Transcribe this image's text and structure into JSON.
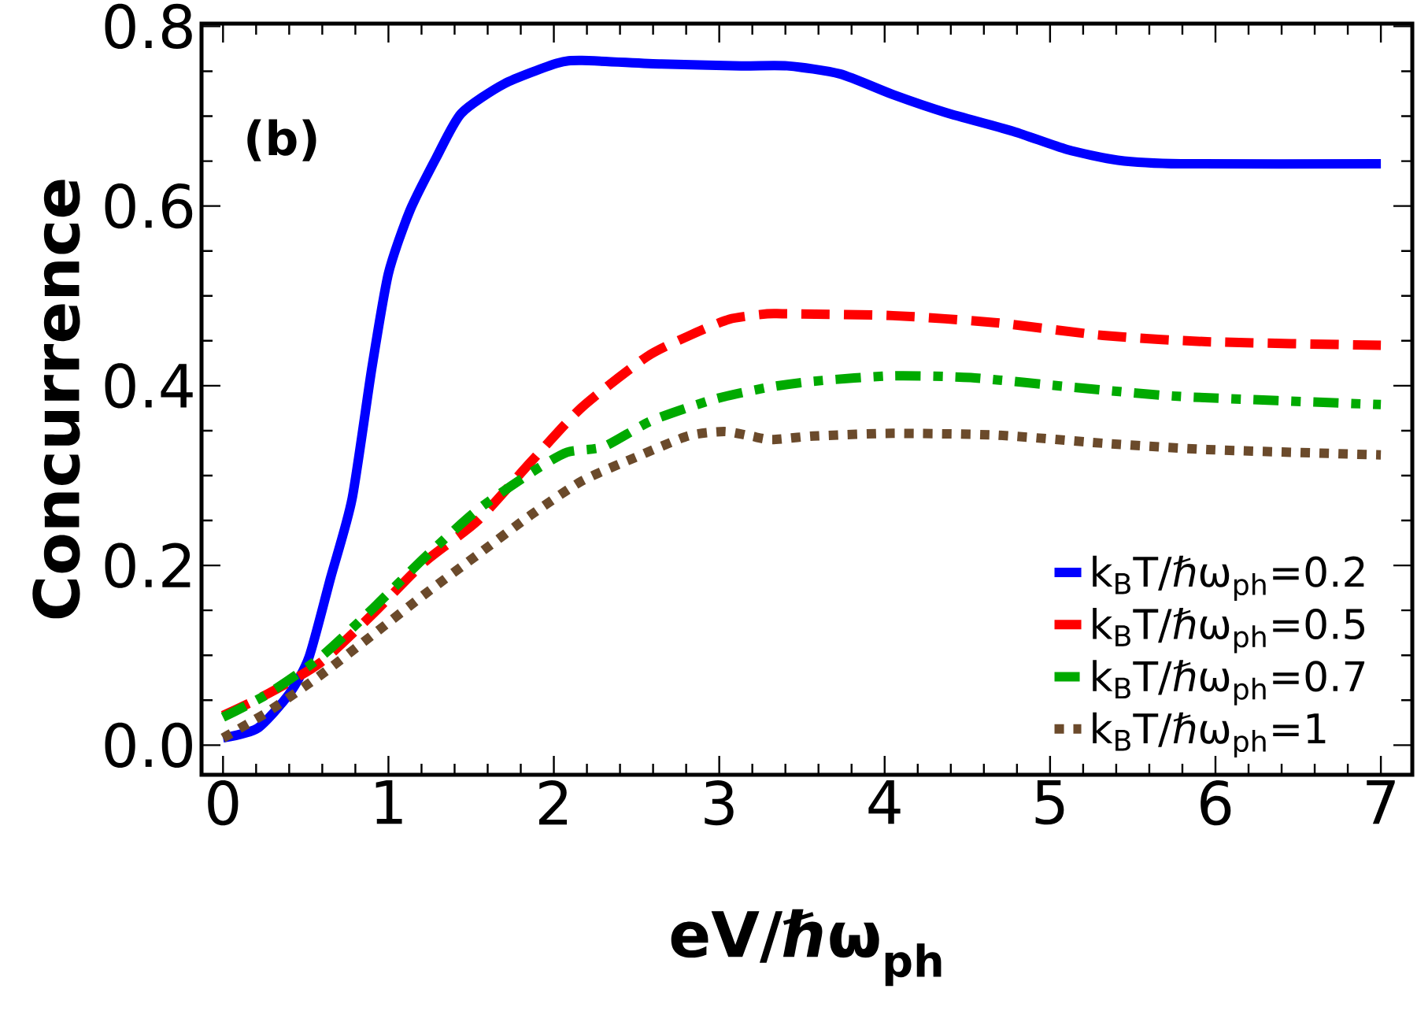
{
  "chart_data": {
    "type": "line",
    "xlabel": "eV/ℏω$_{ph}$",
    "ylabel": "Concurrence",
    "annotations": [
      "(b)"
    ],
    "xlim": [
      -0.13,
      7.19
    ],
    "ylim": [
      -0.033,
      0.803
    ],
    "xticks": [
      0,
      1,
      2,
      3,
      4,
      5,
      6,
      7
    ],
    "yticks": [
      {
        "value": 0,
        "label": "0.0"
      },
      0.2,
      0.4,
      0.6,
      0.8
    ],
    "grid": false,
    "legend": "bottom right",
    "marker": "none",
    "series": [
      {
        "name": "k$_{B}$T/ℏω$_{ph}$=0.2",
        "color": "#0000ff",
        "line_style": "solid",
        "x": [
          0,
          0.21,
          0.4,
          0.52,
          0.65,
          0.78,
          0.9,
          1.0,
          1.13,
          1.29,
          1.44,
          1.7,
          2.02,
          2.17,
          2.65,
          3.13,
          3.41,
          3.73,
          4.05,
          4.37,
          4.78,
          5.1,
          5.41,
          5.79,
          7
        ],
        "values": [
          0.008,
          0.019,
          0.057,
          0.098,
          0.186,
          0.274,
          0.42,
          0.525,
          0.595,
          0.654,
          0.703,
          0.736,
          0.759,
          0.762,
          0.758,
          0.756,
          0.756,
          0.747,
          0.724,
          0.704,
          0.683,
          0.663,
          0.651,
          0.647,
          0.647
        ]
      },
      {
        "name": "k$_{B}$T/ℏω$_{ph}$=0.5",
        "color": "#ff0000",
        "line_style": "dashed",
        "x": [
          0,
          0.27,
          0.59,
          0.9,
          1.22,
          1.54,
          1.86,
          2.17,
          2.56,
          2.81,
          3.06,
          3.29,
          3.41,
          4.05,
          4.68,
          5.32,
          5.95,
          7
        ],
        "values": [
          0.033,
          0.057,
          0.092,
          0.145,
          0.204,
          0.25,
          0.315,
          0.376,
          0.432,
          0.455,
          0.474,
          0.48,
          0.48,
          0.478,
          0.47,
          0.456,
          0.449,
          0.445
        ]
      },
      {
        "name": "k$_{B}$T/ℏω$_{ph}$=0.7",
        "color": "#00aa00",
        "line_style": "dashdot",
        "x": [
          0,
          0.27,
          0.59,
          0.9,
          1.22,
          1.54,
          1.86,
          2.08,
          2.3,
          2.59,
          2.97,
          3.29,
          3.57,
          4.05,
          4.52,
          5.16,
          5.79,
          7
        ],
        "values": [
          0.031,
          0.057,
          0.098,
          0.151,
          0.209,
          0.262,
          0.303,
          0.326,
          0.332,
          0.361,
          0.385,
          0.398,
          0.405,
          0.411,
          0.409,
          0.398,
          0.388,
          0.379
        ]
      },
      {
        "name": "k$_{B}$T/ℏω$_{ph}$=1",
        "color": "#6b4a2b",
        "line_style": "dotted",
        "x": [
          0,
          0.27,
          0.59,
          0.9,
          1.22,
          1.54,
          1.86,
          2.17,
          2.49,
          2.81,
          3.03,
          3.19,
          3.32,
          3.57,
          4.05,
          4.68,
          5.32,
          5.95,
          7
        ],
        "values": [
          0.008,
          0.037,
          0.078,
          0.122,
          0.168,
          0.212,
          0.256,
          0.294,
          0.32,
          0.344,
          0.349,
          0.344,
          0.34,
          0.344,
          0.347,
          0.345,
          0.336,
          0.329,
          0.323
        ]
      }
    ]
  }
}
